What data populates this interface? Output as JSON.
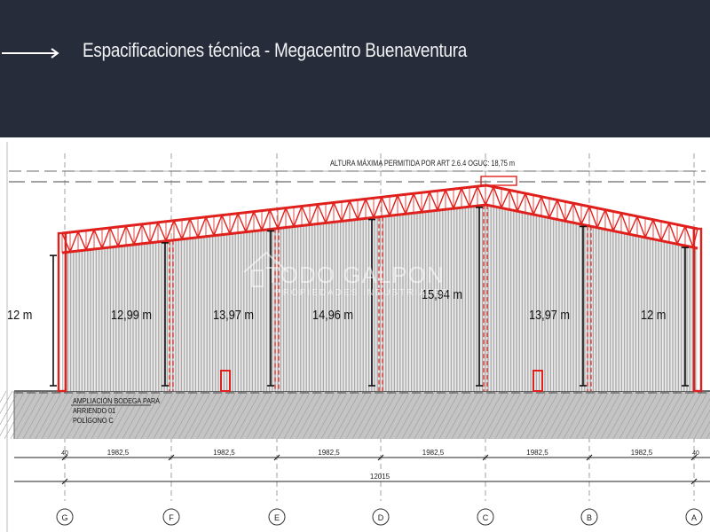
{
  "header": {
    "title": "Espacificaciones técnica - Megacentro Buenaventura",
    "arrow_icon": "long-arrow-right-icon"
  },
  "drawing": {
    "max_height_note": "ALTURA MÁXIMA PERMITIDA POR ART 2.6.4 OGUC: 18,75 m",
    "watermark": {
      "brand": "TODO GALPON",
      "tagline": "PROPIEDADES INDUSTRIALES"
    },
    "heights": [
      "12 m",
      "12,99 m",
      "13,97 m",
      "14,96 m",
      "15,94 m",
      "13,97 m",
      "12 m"
    ],
    "ground_labels": [
      "AMPLIACIÓN BODEGA PARA",
      "ARRIENDO 01",
      "POLÍGONO C"
    ],
    "bay_dimension": "1982,5",
    "bay_dimensions": [
      "1982,5",
      "1982,5",
      "1982,5",
      "1982,5",
      "1982,5",
      "1982,5"
    ],
    "end_markers": [
      "40",
      "40"
    ],
    "total_dimension": "12015",
    "grid_axes": [
      "G",
      "F",
      "E",
      "D",
      "C",
      "B",
      "A"
    ],
    "colors": {
      "header_bg": "#262c3a",
      "steel": "#e0201c",
      "cladding": "#a9a9a9",
      "ground": "#c4c4c4"
    }
  }
}
